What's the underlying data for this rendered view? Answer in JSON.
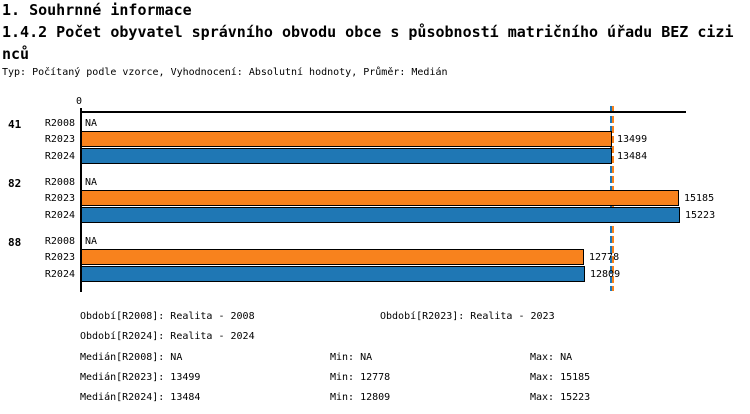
{
  "header": {
    "title": "1. Souhrnné informace",
    "subtitle_line1": "1.4.2 Počet obyvatel správního obvodu obce s působností matričního úřadu BEZ cizi",
    "subtitle_line2": "nců",
    "meta": "Typ: Počítaný podle vzorce, Vyhodnocení: Absolutní hodnoty, Průměr: Medián"
  },
  "chart_data": {
    "type": "bar",
    "orientation": "horizontal",
    "axis_zero_label": "0",
    "na_label": "NA",
    "xlim": [
      0,
      15380
    ],
    "series_colors": {
      "R2023": "#F8821D",
      "R2024": "#1F77B4"
    },
    "groups": [
      {
        "label": "41",
        "rows": [
          {
            "period": "R2008",
            "value": null,
            "display": "NA"
          },
          {
            "period": "R2023",
            "value": 13499,
            "display": "13499"
          },
          {
            "period": "R2024",
            "value": 13484,
            "display": "13484"
          }
        ]
      },
      {
        "label": "82",
        "rows": [
          {
            "period": "R2008",
            "value": null,
            "display": "NA"
          },
          {
            "period": "R2023",
            "value": 15185,
            "display": "15185"
          },
          {
            "period": "R2024",
            "value": 15223,
            "display": "15223"
          }
        ]
      },
      {
        "label": "88",
        "rows": [
          {
            "period": "R2008",
            "value": null,
            "display": "NA"
          },
          {
            "period": "R2023",
            "value": 12778,
            "display": "12778"
          },
          {
            "period": "R2024",
            "value": 12809,
            "display": "12809"
          }
        ]
      }
    ],
    "median_lines": [
      {
        "series": "R2023",
        "value": 13499,
        "color": "#F8821D"
      },
      {
        "series": "R2024",
        "value": 13484,
        "color": "#1F77B4"
      }
    ]
  },
  "legend": {
    "obdobi": [
      {
        "text": "Období[R2008]: Realita - 2008"
      },
      {
        "text": "Období[R2023]: Realita - 2023"
      },
      {
        "text": "Období[R2024]: Realita - 2024"
      }
    ],
    "stats": [
      {
        "median": "Medián[R2008]: NA",
        "min": "Min: NA",
        "max": "Max: NA"
      },
      {
        "median": "Medián[R2023]: 13499",
        "min": "Min: 12778",
        "max": "Max: 15185"
      },
      {
        "median": "Medián[R2024]: 13484",
        "min": "Min: 12809",
        "max": "Max: 15223"
      }
    ]
  }
}
